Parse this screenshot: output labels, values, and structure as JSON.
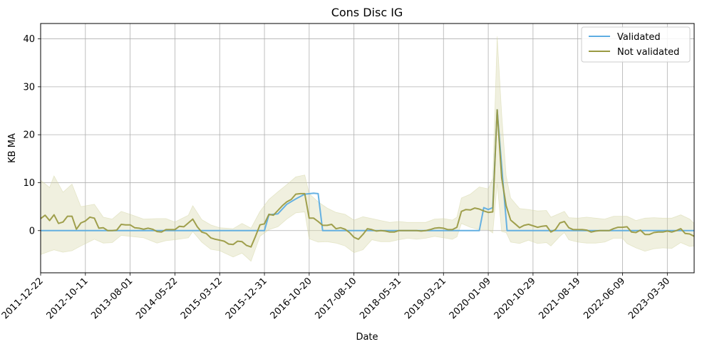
{
  "chart_data": {
    "type": "line",
    "title": "Cons Disc IG",
    "xlabel": "Date",
    "ylabel": "KB MA",
    "x_tick_labels": [
      "2011-12-22",
      "2012-10-11",
      "2013-08-01",
      "2014-05-22",
      "2015-03-12",
      "2015-12-31",
      "2016-10-20",
      "2017-08-10",
      "2018-05-31",
      "2019-03-21",
      "2020-01-09",
      "2020-10-29",
      "2021-08-19",
      "2022-06-09",
      "2023-03-30"
    ],
    "y_ticks": [
      0,
      10,
      20,
      30,
      40
    ],
    "ylim": [
      -8.8,
      43.2
    ],
    "x_range": [
      0,
      14.6
    ],
    "grid": true,
    "legend_position": "top-right",
    "series": [
      {
        "name": "Validated",
        "color": "#5dade2",
        "points": [
          [
            0,
            0
          ],
          [
            5,
            0
          ],
          [
            5.1,
            3.3
          ],
          [
            5.3,
            3.5
          ],
          [
            5.5,
            5.5
          ],
          [
            5.7,
            6.6
          ],
          [
            5.9,
            7.6
          ],
          [
            6.1,
            7.8
          ],
          [
            6.2,
            7.7
          ],
          [
            6.3,
            0
          ],
          [
            6.6,
            0
          ],
          [
            9.8,
            0
          ],
          [
            9.9,
            4.8
          ],
          [
            10,
            4.4
          ],
          [
            10.1,
            4.8
          ],
          [
            10.2,
            25.2
          ],
          [
            10.32,
            11
          ],
          [
            10.42,
            0
          ],
          [
            14.6,
            0
          ]
        ]
      },
      {
        "name": "Not validated",
        "color": "#9a9a43",
        "band_color": "#d4d5a3",
        "points": [
          [
            0,
            2.5
          ],
          [
            0.1,
            3.2
          ],
          [
            0.2,
            2.1
          ],
          [
            0.3,
            3.3
          ],
          [
            0.4,
            1.5
          ],
          [
            0.5,
            1.8
          ],
          [
            0.6,
            3
          ],
          [
            0.7,
            3
          ],
          [
            0.8,
            0.3
          ],
          [
            0.9,
            1.6
          ],
          [
            1,
            2
          ],
          [
            1.1,
            2.8
          ],
          [
            1.2,
            2.6
          ],
          [
            1.3,
            0.5
          ],
          [
            1.4,
            0.6
          ],
          [
            1.5,
            0
          ],
          [
            1.6,
            0
          ],
          [
            1.7,
            0.1
          ],
          [
            1.8,
            1.3
          ],
          [
            1.9,
            1.2
          ],
          [
            2,
            1.2
          ],
          [
            2.1,
            0.6
          ],
          [
            2.2,
            0.5
          ],
          [
            2.3,
            0.3
          ],
          [
            2.4,
            0.5
          ],
          [
            2.5,
            0.3
          ],
          [
            2.6,
            -0.2
          ],
          [
            2.7,
            -0.3
          ],
          [
            2.8,
            0.2
          ],
          [
            2.9,
            0.2
          ],
          [
            3,
            0.2
          ],
          [
            3.1,
            0.9
          ],
          [
            3.2,
            0.8
          ],
          [
            3.3,
            1.6
          ],
          [
            3.4,
            2.4
          ],
          [
            3.5,
            0.8
          ],
          [
            3.6,
            -0.3
          ],
          [
            3.7,
            -0.6
          ],
          [
            3.8,
            -1.5
          ],
          [
            3.9,
            -1.8
          ],
          [
            4,
            -2
          ],
          [
            4.1,
            -2.2
          ],
          [
            4.2,
            -2.8
          ],
          [
            4.3,
            -2.9
          ],
          [
            4.4,
            -2.2
          ],
          [
            4.5,
            -2.3
          ],
          [
            4.6,
            -3.1
          ],
          [
            4.7,
            -3.4
          ],
          [
            4.8,
            -1.2
          ],
          [
            4.9,
            1.2
          ],
          [
            5,
            1.4
          ],
          [
            5.1,
            3.4
          ],
          [
            5.2,
            3.2
          ],
          [
            5.3,
            4.2
          ],
          [
            5.4,
            5.2
          ],
          [
            5.5,
            6
          ],
          [
            5.6,
            6.5
          ],
          [
            5.7,
            7.6
          ],
          [
            5.8,
            7.7
          ],
          [
            5.9,
            7.7
          ],
          [
            6,
            2.6
          ],
          [
            6.1,
            2.6
          ],
          [
            6.2,
            1.9
          ],
          [
            6.3,
            1.1
          ],
          [
            6.4,
            1.1
          ],
          [
            6.5,
            1.3
          ],
          [
            6.6,
            0.4
          ],
          [
            6.7,
            0.6
          ],
          [
            6.8,
            0.3
          ],
          [
            6.9,
            -0.4
          ],
          [
            7,
            -1.4
          ],
          [
            7.1,
            -1.8
          ],
          [
            7.2,
            -0.8
          ],
          [
            7.3,
            0.4
          ],
          [
            7.4,
            0.2
          ],
          [
            7.5,
            -0.1
          ],
          [
            7.6,
            0
          ],
          [
            7.7,
            -0.1
          ],
          [
            7.8,
            -0.3
          ],
          [
            7.9,
            -0.3
          ],
          [
            8,
            0
          ],
          [
            8.1,
            0
          ],
          [
            8.2,
            0
          ],
          [
            8.3,
            0
          ],
          [
            8.4,
            0
          ],
          [
            8.5,
            -0.1
          ],
          [
            8.6,
            0
          ],
          [
            8.7,
            0.2
          ],
          [
            8.8,
            0.5
          ],
          [
            8.9,
            0.6
          ],
          [
            9,
            0.5
          ],
          [
            9.1,
            0.2
          ],
          [
            9.2,
            0.2
          ],
          [
            9.3,
            0.7
          ],
          [
            9.4,
            4
          ],
          [
            9.5,
            4.4
          ],
          [
            9.6,
            4.3
          ],
          [
            9.7,
            4.7
          ],
          [
            9.8,
            4.5
          ],
          [
            9.9,
            4.1
          ],
          [
            10,
            3.8
          ],
          [
            10.1,
            3.9
          ],
          [
            10.2,
            25.2
          ],
          [
            10.3,
            11
          ],
          [
            10.4,
            5.2
          ],
          [
            10.5,
            2.2
          ],
          [
            10.6,
            1.4
          ],
          [
            10.7,
            0.6
          ],
          [
            10.8,
            1.1
          ],
          [
            10.9,
            1.3
          ],
          [
            11,
            1
          ],
          [
            11.1,
            0.7
          ],
          [
            11.2,
            0.9
          ],
          [
            11.3,
            1
          ],
          [
            11.4,
            -0.3
          ],
          [
            11.5,
            0.2
          ],
          [
            11.6,
            1.6
          ],
          [
            11.7,
            1.9
          ],
          [
            11.8,
            0.6
          ],
          [
            11.9,
            0.2
          ],
          [
            12,
            0.2
          ],
          [
            12.1,
            0.2
          ],
          [
            12.2,
            0.1
          ],
          [
            12.3,
            -0.3
          ],
          [
            12.4,
            -0.1
          ],
          [
            12.5,
            0
          ],
          [
            12.6,
            0
          ],
          [
            12.7,
            0
          ],
          [
            12.8,
            0.4
          ],
          [
            12.9,
            0.7
          ],
          [
            13,
            0.7
          ],
          [
            13.1,
            0.8
          ],
          [
            13.2,
            -0.3
          ],
          [
            13.3,
            -0.4
          ],
          [
            13.4,
            0.1
          ],
          [
            13.5,
            -0.8
          ],
          [
            13.6,
            -0.8
          ],
          [
            13.7,
            -0.4
          ],
          [
            13.8,
            -0.3
          ],
          [
            13.9,
            -0.3
          ],
          [
            14,
            -0.1
          ],
          [
            14.1,
            -0.3
          ],
          [
            14.2,
            0
          ],
          [
            14.3,
            0.4
          ],
          [
            14.4,
            -0.6
          ],
          [
            14.5,
            -0.7
          ],
          [
            14.6,
            -1.2
          ]
        ],
        "band": [
          [
            0,
            -5,
            10.5
          ],
          [
            0.2,
            -4.3,
            9
          ],
          [
            0.3,
            -4,
            11.4
          ],
          [
            0.5,
            -4.5,
            8
          ],
          [
            0.7,
            -4.2,
            9.7
          ],
          [
            0.9,
            -3.2,
            5
          ],
          [
            1.2,
            -1.8,
            5.5
          ],
          [
            1.4,
            -2.6,
            2.8
          ],
          [
            1.6,
            -2.5,
            2.4
          ],
          [
            1.8,
            -1,
            4
          ],
          [
            2,
            -1.2,
            3.4
          ],
          [
            2.3,
            -1.5,
            2.4
          ],
          [
            2.6,
            -2.6,
            2.5
          ],
          [
            2.8,
            -2.1,
            2.5
          ],
          [
            3,
            -1.9,
            1.8
          ],
          [
            3.3,
            -1.5,
            3.2
          ],
          [
            3.4,
            -0.2,
            5.2
          ],
          [
            3.6,
            -2.4,
            2.3
          ],
          [
            3.8,
            -3.9,
            1.2
          ],
          [
            4,
            -4.2,
            0.6
          ],
          [
            4.3,
            -5.5,
            0.4
          ],
          [
            4.5,
            -4.7,
            1.5
          ],
          [
            4.7,
            -6.4,
            0.5
          ],
          [
            4.9,
            -1.2,
            4
          ],
          [
            5.1,
            0.2,
            6.5
          ],
          [
            5.3,
            0.8,
            8.1
          ],
          [
            5.5,
            2.4,
            9.6
          ],
          [
            5.7,
            3.7,
            11.2
          ],
          [
            5.9,
            3.9,
            11.6
          ],
          [
            6,
            -1.7,
            7.7
          ],
          [
            6.2,
            -2.4,
            6
          ],
          [
            6.4,
            -2.3,
            4.7
          ],
          [
            6.6,
            -2.6,
            3.8
          ],
          [
            6.8,
            -3.2,
            3.4
          ],
          [
            7,
            -4.6,
            2.2
          ],
          [
            7.2,
            -4,
            2.9
          ],
          [
            7.4,
            -1.9,
            2.5
          ],
          [
            7.6,
            -2.3,
            2.1
          ],
          [
            7.8,
            -2.3,
            1.7
          ],
          [
            8,
            -1.9,
            1.9
          ],
          [
            8.2,
            -1.6,
            1.7
          ],
          [
            8.4,
            -1.8,
            1.7
          ],
          [
            8.6,
            -1.6,
            1.7
          ],
          [
            8.8,
            -1.2,
            2.4
          ],
          [
            9,
            -1.5,
            2.5
          ],
          [
            9.2,
            -1.8,
            2.2
          ],
          [
            9.3,
            -1.3,
            2.8
          ],
          [
            9.4,
            1.5,
            6.8
          ],
          [
            9.6,
            0.7,
            7.6
          ],
          [
            9.8,
            0.2,
            9.1
          ],
          [
            10,
            0.2,
            8.7
          ],
          [
            10.1,
            -0.5,
            10.9
          ],
          [
            10.2,
            9.8,
            40.5
          ],
          [
            10.3,
            -0.2,
            24.3
          ],
          [
            10.4,
            -0.4,
            11.4
          ],
          [
            10.5,
            -2.4,
            6.8
          ],
          [
            10.7,
            -2.7,
            4.6
          ],
          [
            10.9,
            -2,
            4.4
          ],
          [
            11.1,
            -2.7,
            4.1
          ],
          [
            11.3,
            -2.5,
            4.2
          ],
          [
            11.4,
            -3.2,
            2.8
          ],
          [
            11.6,
            -1.2,
            3.6
          ],
          [
            11.7,
            -0.4,
            4
          ],
          [
            11.8,
            -1.9,
            2.7
          ],
          [
            12,
            -2.4,
            2.6
          ],
          [
            12.2,
            -2.6,
            2.8
          ],
          [
            12.4,
            -2.6,
            2.6
          ],
          [
            12.6,
            -2.4,
            2.4
          ],
          [
            12.8,
            -1.6,
            3
          ],
          [
            13,
            -1.6,
            3
          ],
          [
            13.1,
            -2.7,
            3
          ],
          [
            13.3,
            -3.6,
            2.1
          ],
          [
            13.5,
            -4.3,
            2.6
          ],
          [
            13.7,
            -3.8,
            2.7
          ],
          [
            13.9,
            -3.6,
            2.6
          ],
          [
            14.1,
            -3.7,
            2.6
          ],
          [
            14.3,
            -2.5,
            3.3
          ],
          [
            14.5,
            -3.3,
            2.4
          ],
          [
            14.6,
            -3.2,
            1.5
          ]
        ]
      }
    ]
  }
}
